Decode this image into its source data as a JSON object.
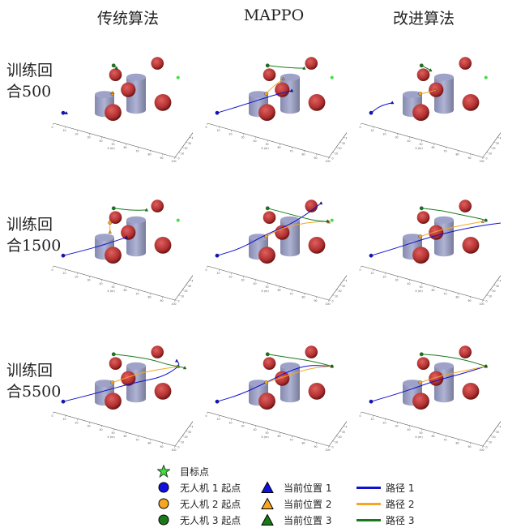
{
  "column_titles": [
    "传统算法",
    "MAPPO",
    "改进算法"
  ],
  "row_labels": [
    {
      "line1": "训练回",
      "line2": "合500"
    },
    {
      "line1": "训练回",
      "line2": "合1500"
    },
    {
      "line1": "训练回",
      "line2": "合5500"
    }
  ],
  "colors": {
    "uav1": "#1010d0",
    "uav2": "#f5a623",
    "uav3": "#1a7a1a",
    "target": "#44dd44",
    "obstacle_sphere": "#b03030",
    "obstacle_cylinder": "#8a8fb8",
    "axis": "#555555"
  },
  "chart_data": {
    "type": "line3d",
    "title": "",
    "xlabel": "X (m)",
    "ylabel": "Y (m)",
    "zlabel": "Z (m)",
    "xlim": [
      0,
      100
    ],
    "ylim": [
      0,
      100
    ],
    "zlim": [
      0,
      100
    ],
    "x_ticks": [
      "0",
      "10",
      "20",
      "30",
      "40",
      "50",
      "60",
      "70",
      "80",
      "90",
      "100"
    ],
    "y_ticks": [
      "0",
      "10",
      "20",
      "30",
      "40",
      "50",
      "60",
      "70",
      "80",
      "90",
      "100"
    ],
    "z_ticks": [
      "0",
      "10",
      "20",
      "30",
      "40",
      "50",
      "60",
      "70",
      "80",
      "90",
      "100"
    ],
    "obstacles": {
      "cylinders": [
        {
          "x": 30,
          "y": 40,
          "z0": 0,
          "height": 40,
          "radius": 8
        },
        {
          "x": 50,
          "y": 60,
          "z0": 0,
          "height": 70,
          "radius": 8
        }
      ],
      "spheres": [
        {
          "x": 40,
          "y": 30,
          "z": 20,
          "r": 8
        },
        {
          "x": 30,
          "y": 70,
          "z": 50,
          "r": 6
        },
        {
          "x": 45,
          "y": 55,
          "z": 45,
          "r": 7
        },
        {
          "x": 75,
          "y": 50,
          "z": 45,
          "r": 8
        },
        {
          "x": 60,
          "y": 85,
          "z": 80,
          "r": 6
        }
      ]
    },
    "target": {
      "x": 80,
      "y": 75,
      "z": 75
    },
    "legend": {
      "target": "目标点",
      "start": [
        "无人机 1 起点",
        "无人机 2 起点",
        "无人机 3 起点"
      ],
      "current": [
        "当前位置 1",
        "当前位置 2",
        "当前位置 3"
      ],
      "path": [
        "路径 1",
        "路径 2",
        "路径 3"
      ],
      "placement": "bottom-center"
    },
    "panels": [
      {
        "row": 0,
        "col": 0,
        "algorithm": "传统算法",
        "episode": 500,
        "paths": [
          [
            [
              5,
              10,
              15
            ],
            [
              7,
              12,
              14
            ]
          ],
          [
            [
              35,
              45,
              40
            ],
            [
              35,
              46,
              41
            ]
          ],
          [
            [
              30,
              65,
              75
            ],
            [
              33,
              63,
              74
            ]
          ]
        ]
      },
      {
        "row": 0,
        "col": 1,
        "algorithm": "MAPPO",
        "episode": 500,
        "paths": [
          [
            [
              5,
              10,
              15
            ],
            [
              20,
              25,
              25
            ],
            [
              40,
              45,
              40
            ],
            [
              52,
              58,
              45
            ]
          ],
          [
            [
              35,
              45,
              40
            ],
            [
              38,
              50,
              50
            ],
            [
              45,
              58,
              65
            ]
          ],
          [
            [
              30,
              65,
              75
            ],
            [
              45,
              68,
              78
            ],
            [
              58,
              72,
              82
            ]
          ]
        ]
      },
      {
        "row": 0,
        "col": 2,
        "algorithm": "改进算法",
        "episode": 500,
        "paths": [
          [
            [
              5,
              10,
              15
            ],
            [
              10,
              18,
              25
            ],
            [
              18,
              25,
              30
            ]
          ],
          [
            [
              35,
              45,
              40
            ],
            [
              40,
              48,
              43
            ],
            [
              45,
              52,
              47
            ]
          ],
          [
            [
              30,
              65,
              75
            ],
            [
              34,
              64,
              74
            ],
            [
              38,
              63,
              73
            ]
          ]
        ]
      },
      {
        "row": 1,
        "col": 0,
        "algorithm": "传统算法",
        "episode": 1500,
        "paths": [
          [
            [
              5,
              10,
              15
            ],
            [
              25,
              30,
              25
            ],
            [
              45,
              50,
              40
            ]
          ],
          [
            [
              30,
              55,
              55
            ],
            [
              30,
              55,
              45
            ],
            [
              30,
              55,
              35
            ]
          ],
          [
            [
              30,
              65,
              75
            ],
            [
              45,
              68,
              78
            ],
            [
              55,
              72,
              82
            ]
          ]
        ]
      },
      {
        "row": 1,
        "col": 1,
        "algorithm": "MAPPO",
        "episode": 1500,
        "paths": [
          [
            [
              5,
              10,
              15
            ],
            [
              20,
              25,
              25
            ],
            [
              35,
              45,
              45
            ],
            [
              50,
              60,
              60
            ],
            [
              62,
              75,
              80
            ],
            [
              68,
              85,
              92
            ]
          ],
          [
            [
              35,
              45,
              40
            ],
            [
              45,
              55,
              55
            ],
            [
              60,
              65,
              65
            ],
            [
              72,
              72,
              70
            ],
            [
              78,
              73,
              72
            ]
          ],
          [
            [
              30,
              65,
              75
            ],
            [
              50,
              68,
              72
            ],
            [
              65,
              70,
              70
            ],
            [
              75,
              72,
              72
            ],
            [
              77,
              73,
              73
            ]
          ]
        ]
      },
      {
        "row": 1,
        "col": 2,
        "algorithm": "改进算法",
        "episode": 1500,
        "paths": [
          [
            [
              5,
              10,
              15
            ],
            [
              20,
              25,
              25
            ],
            [
              40,
              45,
              40
            ],
            [
              60,
              60,
              55
            ],
            [
              80,
              70,
              70
            ],
            [
              95,
              78,
              78
            ]
          ],
          [
            [
              35,
              45,
              40
            ],
            [
              50,
              55,
              55
            ],
            [
              65,
              65,
              65
            ],
            [
              78,
              73,
              73
            ]
          ],
          [
            [
              30,
              65,
              75
            ],
            [
              45,
              68,
              78
            ],
            [
              60,
              70,
              78
            ],
            [
              75,
              74,
              76
            ],
            [
              80,
              75,
              75
            ]
          ]
        ]
      },
      {
        "row": 2,
        "col": 0,
        "algorithm": "传统算法",
        "episode": 5500,
        "paths": [
          [
            [
              5,
              10,
              15
            ],
            [
              25,
              30,
              25
            ],
            [
              50,
              55,
              40
            ],
            [
              70,
              65,
              55
            ],
            [
              82,
              75,
              78
            ],
            [
              78,
              78,
              82
            ]
          ],
          [
            [
              35,
              45,
              40
            ],
            [
              55,
              60,
              60
            ],
            [
              70,
              70,
              68
            ],
            [
              80,
              75,
              74
            ]
          ],
          [
            [
              30,
              65,
              75
            ],
            [
              45,
              68,
              78
            ],
            [
              60,
              70,
              80
            ],
            [
              72,
              72,
              76
            ],
            [
              82,
              76,
              74
            ],
            [
              85,
              77,
              73
            ]
          ]
        ]
      },
      {
        "row": 2,
        "col": 1,
        "algorithm": "MAPPO",
        "episode": 5500,
        "paths": [
          [
            [
              5,
              10,
              15
            ],
            [
              20,
              25,
              25
            ],
            [
              35,
              45,
              40
            ],
            [
              50,
              60,
              60
            ],
            [
              62,
              70,
              70
            ],
            [
              80,
              75,
              75
            ]
          ],
          [
            [
              35,
              45,
              40
            ],
            [
              50,
              55,
              55
            ],
            [
              65,
              68,
              68
            ],
            [
              80,
              75,
              75
            ]
          ],
          [
            [
              30,
              65,
              75
            ],
            [
              50,
              68,
              78
            ],
            [
              65,
              72,
              78
            ],
            [
              80,
              75,
              75
            ]
          ]
        ]
      },
      {
        "row": 2,
        "col": 2,
        "algorithm": "改进算法",
        "episode": 5500,
        "paths": [
          [
            [
              5,
              10,
              15
            ],
            [
              25,
              30,
              28
            ],
            [
              45,
              50,
              45
            ],
            [
              65,
              65,
              60
            ],
            [
              80,
              75,
              75
            ]
          ],
          [
            [
              35,
              45,
              40
            ],
            [
              50,
              55,
              55
            ],
            [
              65,
              65,
              65
            ],
            [
              80,
              75,
              75
            ]
          ],
          [
            [
              30,
              65,
              75
            ],
            [
              45,
              68,
              80
            ],
            [
              65,
              72,
              80
            ],
            [
              80,
              75,
              75
            ]
          ]
        ]
      }
    ]
  }
}
